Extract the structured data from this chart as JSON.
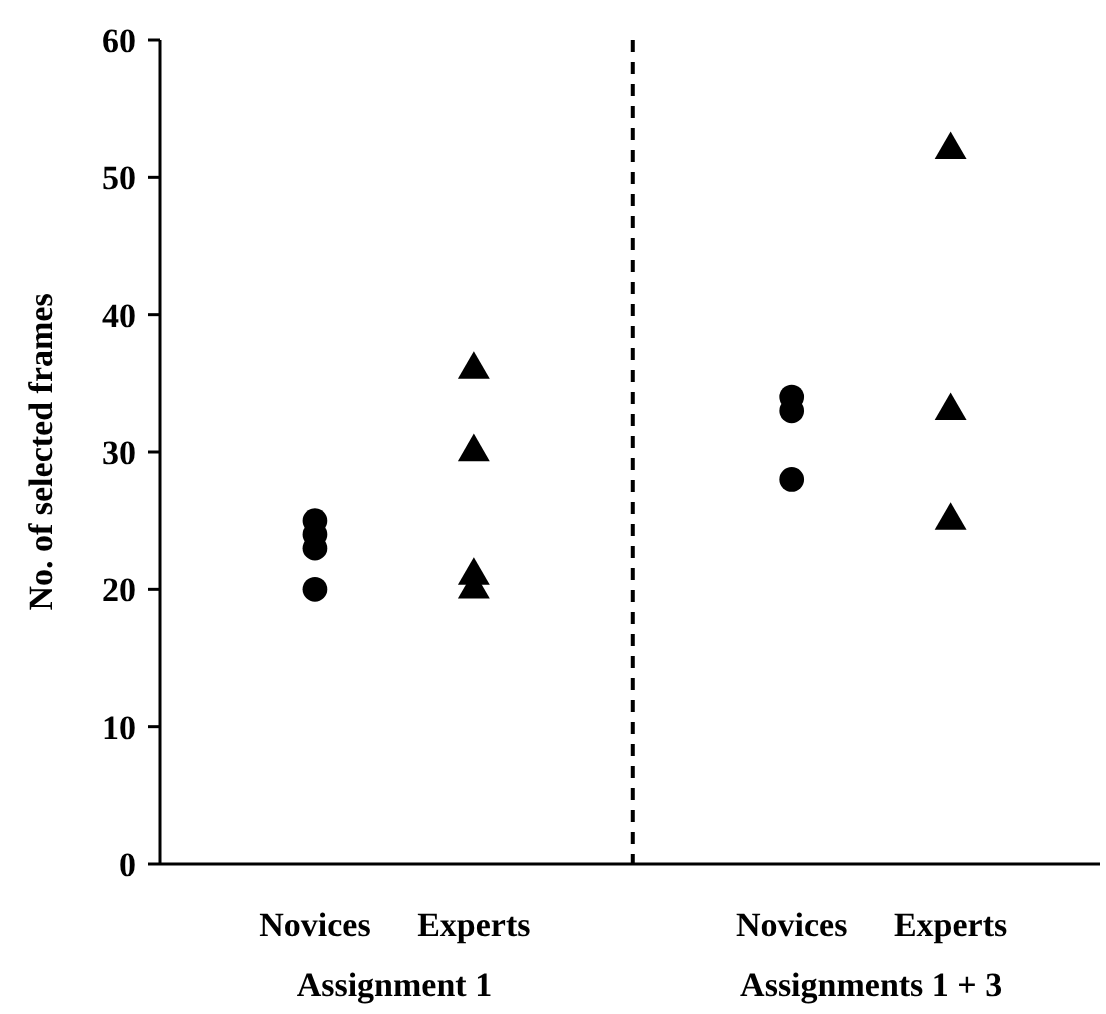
{
  "chart_data": {
    "type": "scatter",
    "ylabel": "No. of selected frames",
    "categories": [
      "Novices",
      "Experts",
      "Novices",
      "Experts"
    ],
    "series": [
      {
        "marker": "circle",
        "color": "#000000",
        "values": [
          25,
          null,
          34,
          null
        ]
      },
      {
        "marker": "circle",
        "color": "#000000",
        "values": [
          24,
          null,
          33,
          null
        ]
      },
      {
        "marker": "circle",
        "color": "#000000",
        "values": [
          23,
          null,
          28,
          null
        ]
      },
      {
        "marker": "circle",
        "color": "#000000",
        "values": [
          20,
          null,
          null,
          null
        ]
      },
      {
        "marker": "triangle",
        "color": "#000000",
        "values": [
          null,
          36,
          null,
          52
        ]
      },
      {
        "marker": "triangle",
        "color": "#000000",
        "values": [
          null,
          30,
          null,
          33
        ]
      },
      {
        "marker": "triangle",
        "color": "#000000",
        "values": [
          null,
          21,
          null,
          25
        ]
      },
      {
        "marker": "triangle",
        "color": "#000000",
        "values": [
          null,
          20,
          null,
          null
        ]
      }
    ],
    "ylim": [
      0,
      60
    ],
    "yticks": [
      0,
      10,
      20,
      30,
      40,
      50,
      60
    ],
    "annotations": [
      "Assignment 1",
      "Assignments 1 + 3"
    ]
  }
}
